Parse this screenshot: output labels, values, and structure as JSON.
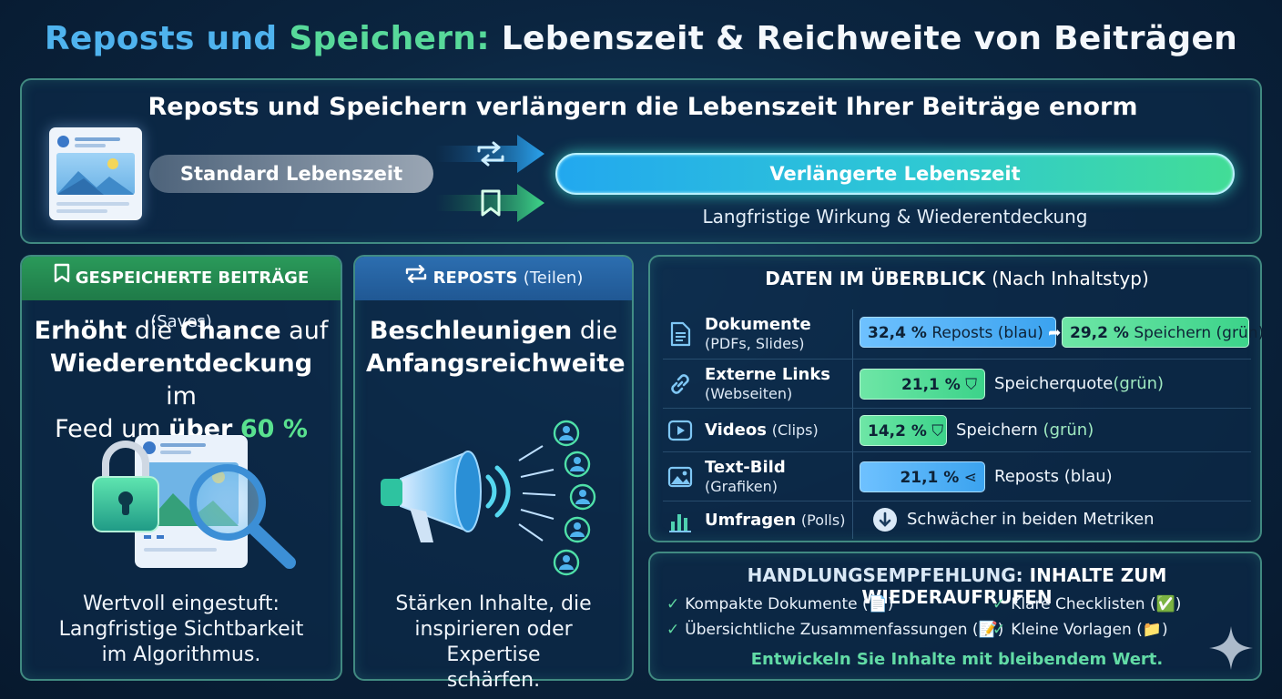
{
  "title": {
    "part1": "Reposts und",
    "part2": "Speichern:",
    "part3": "Lebenszeit & Reichweite von Beiträgen"
  },
  "top": {
    "headline": "Reposts und Speichern verlängern die Lebenszeit Ihrer Beiträge enorm",
    "standard_label": "Standard Lebenszeit",
    "extended_label": "Verlängerte Lebenszeit",
    "extended_sub": "Langfristige Wirkung & Wiederentdeckung"
  },
  "saves": {
    "header": "GESPEICHERTE BEITRÄGE",
    "header_sub": "(Saves)",
    "title_b1": "Erhöht",
    "title_n1": "die",
    "title_b2": "Chance",
    "title_n2": "auf",
    "title_b3": "Wiederentdeckung",
    "title_n3": "im",
    "title_n4": "Feed um",
    "title_b4": "über",
    "title_pct": "60 %",
    "footer_line1": "Wertvoll eingestuft:",
    "footer_line2": "Langfristige Sichtbarkeit",
    "footer_line3": "im Algorithmus."
  },
  "reposts": {
    "header": "REPOSTS",
    "header_sub": "(Teilen)",
    "title_b1": "Beschleunigen",
    "title_n1": "die",
    "title_b2": "Anfangsreichweite",
    "footer_line1": "Stärken Inhalte, die",
    "footer_line2": "inspirieren oder Expertise",
    "footer_line3": "schärfen."
  },
  "data": {
    "header": "DATEN IM ÜBERBLICK",
    "header_sub": "(Nach Inhaltstyp)",
    "rows": [
      {
        "name": "Dokumente",
        "sub": "(PDFs, Slides)",
        "icon": "document-icon",
        "chip1": "32,4 %",
        "chip1_text": "Reposts (blau)",
        "chip2": "29,2 %",
        "chip2_text": "Speichern (grün)"
      },
      {
        "name": "Externe Links",
        "sub": "(Webseiten)",
        "icon": "link-icon",
        "chip1": "21,1 %",
        "text": "Speicherquote",
        "text_sub": "(grün)"
      },
      {
        "name": "Videos",
        "sub": "(Clips)",
        "icon": "video-icon",
        "chip1": "14,2 %",
        "text": "Speichern",
        "text_sub": "(grün)"
      },
      {
        "name": "Text-Bild",
        "sub": "(Grafiken)",
        "icon": "image-icon",
        "chip1": "21,1 %",
        "text": "Reposts (blau)"
      },
      {
        "name": "Umfragen",
        "sub": "(Polls)",
        "icon": "bar-chart-icon",
        "text": "Schwächer in beiden Metriken"
      }
    ]
  },
  "recommendation": {
    "header_a": "HANDLUNGSEMPFEHLUNG:",
    "header_b": "INHALTE ZUM WIEDERAUFRUFEN",
    "items": [
      "Kompakte Dokumente (📄)",
      "Klare Checklisten (✅)",
      "Übersichtliche Zusammenfassungen (📝)",
      "Kleine Vorlagen (📁)"
    ],
    "footer": "Entwickeln Sie Inhalte mit bleibendem Wert."
  },
  "colors": {
    "background": "#0b2540",
    "accent_blue": "#3ba3ef",
    "accent_green": "#3cd38a",
    "panel_border": "#6edcb4"
  }
}
